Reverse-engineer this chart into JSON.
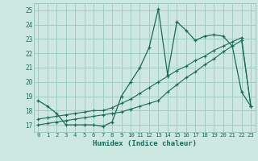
{
  "xlabel": "Humidex (Indice chaleur)",
  "x_ticks": [
    0,
    1,
    2,
    3,
    4,
    5,
    6,
    7,
    8,
    9,
    10,
    11,
    12,
    13,
    14,
    15,
    16,
    17,
    18,
    19,
    20,
    21,
    22,
    23
  ],
  "xlim": [
    -0.5,
    23.5
  ],
  "ylim": [
    16.5,
    25.5
  ],
  "y_ticks": [
    17,
    18,
    19,
    20,
    21,
    22,
    23,
    24,
    25
  ],
  "background_color": "#cce8e0",
  "grid_color": "#9ac8be",
  "line_color": "#1a6b5a",
  "line1_x": [
    0,
    1,
    2,
    3,
    4,
    5,
    6,
    7,
    8,
    9,
    10,
    11,
    12,
    13,
    14,
    15,
    16,
    17,
    18,
    19,
    20,
    21,
    22,
    23
  ],
  "line1_y": [
    18.7,
    18.3,
    17.8,
    17.0,
    17.0,
    17.0,
    17.0,
    16.9,
    17.2,
    19.0,
    20.0,
    21.0,
    22.4,
    25.1,
    20.5,
    24.2,
    23.6,
    22.9,
    23.2,
    23.3,
    23.2,
    22.5,
    19.3,
    18.3
  ],
  "line2_x": [
    0,
    1,
    2,
    3,
    4,
    5,
    6,
    7,
    8,
    9,
    10,
    11,
    12,
    13,
    14,
    15,
    16,
    17,
    18,
    19,
    20,
    21,
    22,
    23
  ],
  "line2_y": [
    17.0,
    17.1,
    17.2,
    17.3,
    17.4,
    17.5,
    17.6,
    17.7,
    17.8,
    17.9,
    18.1,
    18.3,
    18.5,
    18.7,
    19.3,
    19.8,
    20.3,
    20.7,
    21.2,
    21.6,
    22.1,
    22.5,
    22.9,
    18.3
  ],
  "line3_x": [
    0,
    1,
    2,
    3,
    4,
    5,
    6,
    7,
    8,
    9,
    10,
    11,
    12,
    13,
    14,
    15,
    16,
    17,
    18,
    19,
    20,
    21,
    22,
    23
  ],
  "line3_y": [
    17.4,
    17.5,
    17.6,
    17.7,
    17.8,
    17.9,
    18.0,
    18.0,
    18.2,
    18.5,
    18.8,
    19.2,
    19.6,
    20.0,
    20.4,
    20.8,
    21.1,
    21.5,
    21.8,
    22.2,
    22.5,
    22.8,
    23.1,
    18.3
  ]
}
